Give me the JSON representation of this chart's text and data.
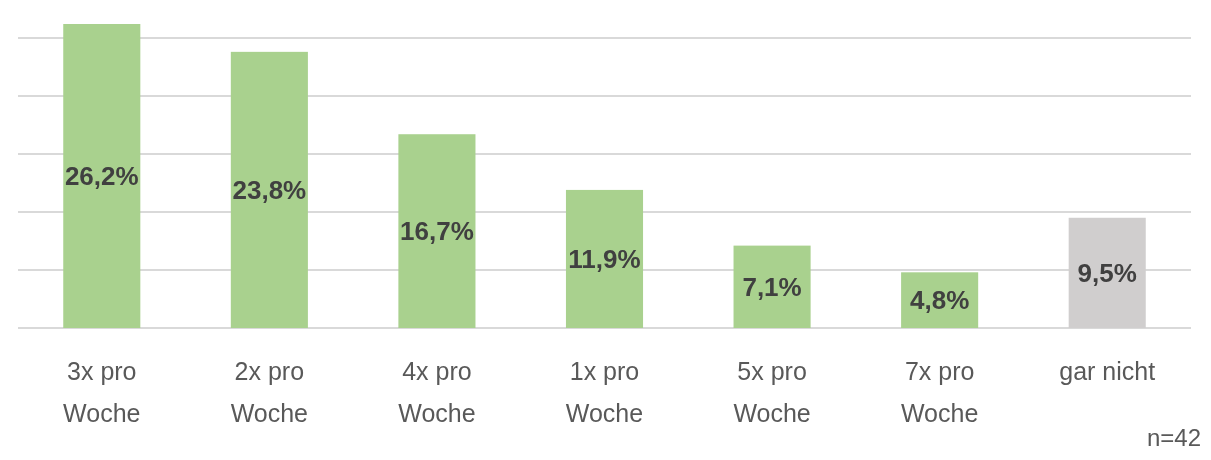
{
  "chart_data": {
    "type": "bar",
    "categories": [
      "3x pro Woche",
      "2x pro Woche",
      "4x pro Woche",
      "1x pro Woche",
      "5x pro Woche",
      "7x pro Woche",
      "gar nicht"
    ],
    "values": [
      26.2,
      23.8,
      16.7,
      11.9,
      7.1,
      4.8,
      9.5
    ],
    "colors": [
      "#a9d18e",
      "#a9d18e",
      "#a9d18e",
      "#a9d18e",
      "#a9d18e",
      "#a9d18e",
      "#d0cece"
    ],
    "value_labels": [
      "26,2%",
      "23,8%",
      "16,7%",
      "11,9%",
      "7,1%",
      "4,8%",
      "9,5%"
    ],
    "yticks": [
      {
        "value": 0,
        "label": null
      },
      {
        "value": 5,
        "label": null
      },
      {
        "value": 10,
        "label": null
      },
      {
        "value": 15,
        "label": null
      },
      {
        "value": 20,
        "label": null
      },
      {
        "value": 25,
        "label": null
      }
    ],
    "grid": "y",
    "tick_labels": "x",
    "annotations": [
      "n=42"
    ]
  }
}
